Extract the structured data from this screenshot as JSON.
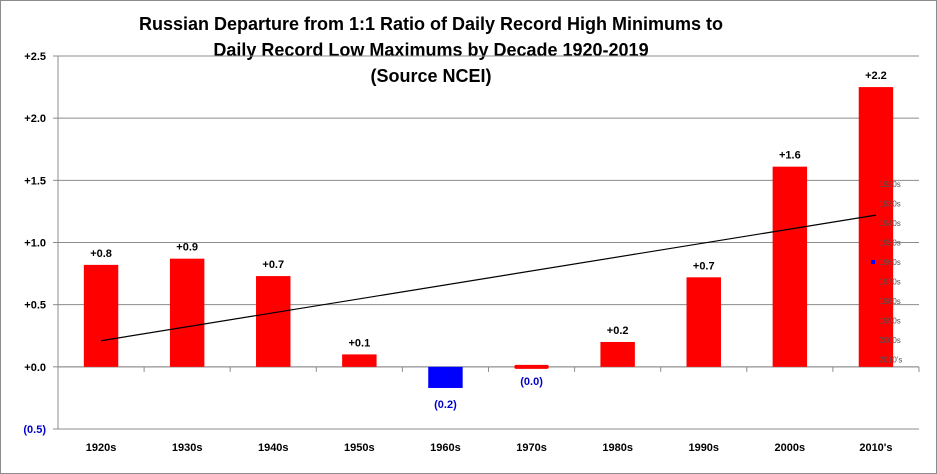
{
  "chart_data": {
    "type": "bar",
    "title_lines": [
      "Russian  Departure  from  1:1 Ratio of Daily Record High Minimums  to",
      "Daily Record Low Maximums by Decade 1920-2019",
      "(Source NCEI)"
    ],
    "categories": [
      "1920s",
      "1930s",
      "1940s",
      "1950s",
      "1960s",
      "1970s",
      "1980s",
      "1990s",
      "2000s",
      "2010's"
    ],
    "values": [
      0.82,
      0.87,
      0.73,
      0.1,
      -0.17,
      0.0,
      0.2,
      0.72,
      1.61,
      2.25
    ],
    "data_labels": [
      "+0.8",
      "+0.9",
      "+0.7",
      "+0.1",
      "(0.2)",
      "(0.0)",
      "+0.2",
      "+0.7",
      "+1.6",
      "+2.2"
    ],
    "ylim": [
      -0.5,
      2.5
    ],
    "yticks": [
      2.5,
      2.0,
      1.5,
      1.0,
      0.5,
      0.0,
      -0.5
    ],
    "ytick_labels": [
      "+2.5",
      "+2.0",
      "+1.5",
      "+1.0",
      "+0.5",
      "+0.0",
      "(0.5)"
    ],
    "grid": true,
    "colors": {
      "positive": "#ff0000",
      "negative": "#0000ff",
      "negative_label": "#0000cc",
      "trend": "#000000"
    },
    "trendline": {
      "type": "linear",
      "start": 0.21,
      "end": 1.22
    },
    "legend": {
      "placement": "right-inside",
      "entries": [
        "1920s",
        "1930s",
        "1940s",
        "1950s",
        "1960s",
        "1970s",
        "1980s",
        "1990s",
        "2000s",
        "2010's"
      ],
      "highlight_index": 4
    }
  }
}
